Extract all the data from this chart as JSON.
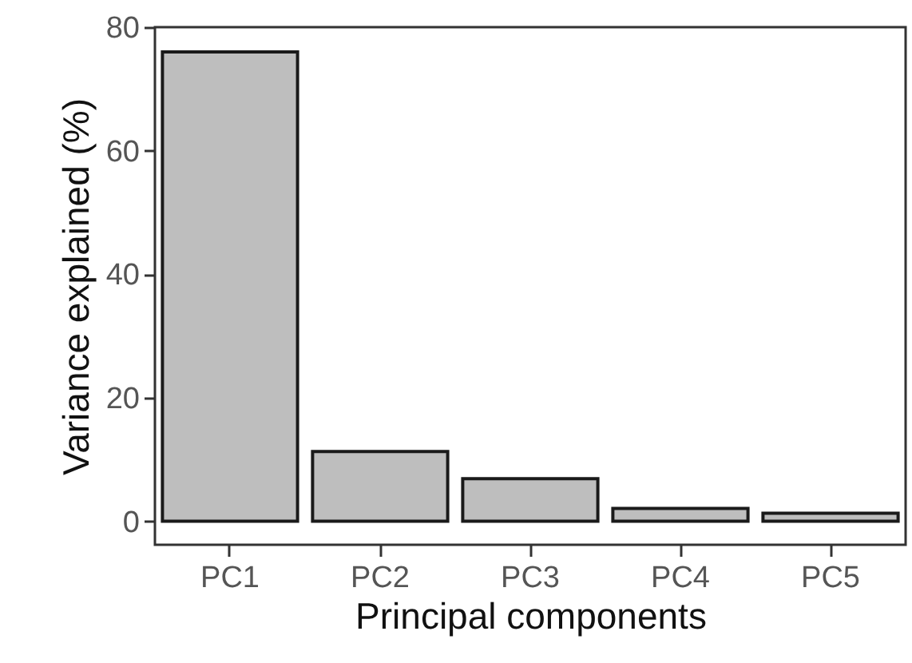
{
  "chart_data": {
    "type": "bar",
    "xlabel": "Principal components",
    "ylabel": "Variance explained (%)",
    "categories": [
      "PC1",
      "PC2",
      "PC3",
      "PC4",
      "PC5"
    ],
    "values": [
      76,
      11.3,
      6.9,
      2.1,
      1.3
    ],
    "color": "#bebebe",
    "ylim": [
      -3.8,
      80
    ],
    "yticks": [
      0,
      20,
      40,
      60,
      80
    ],
    "grid": false
  }
}
